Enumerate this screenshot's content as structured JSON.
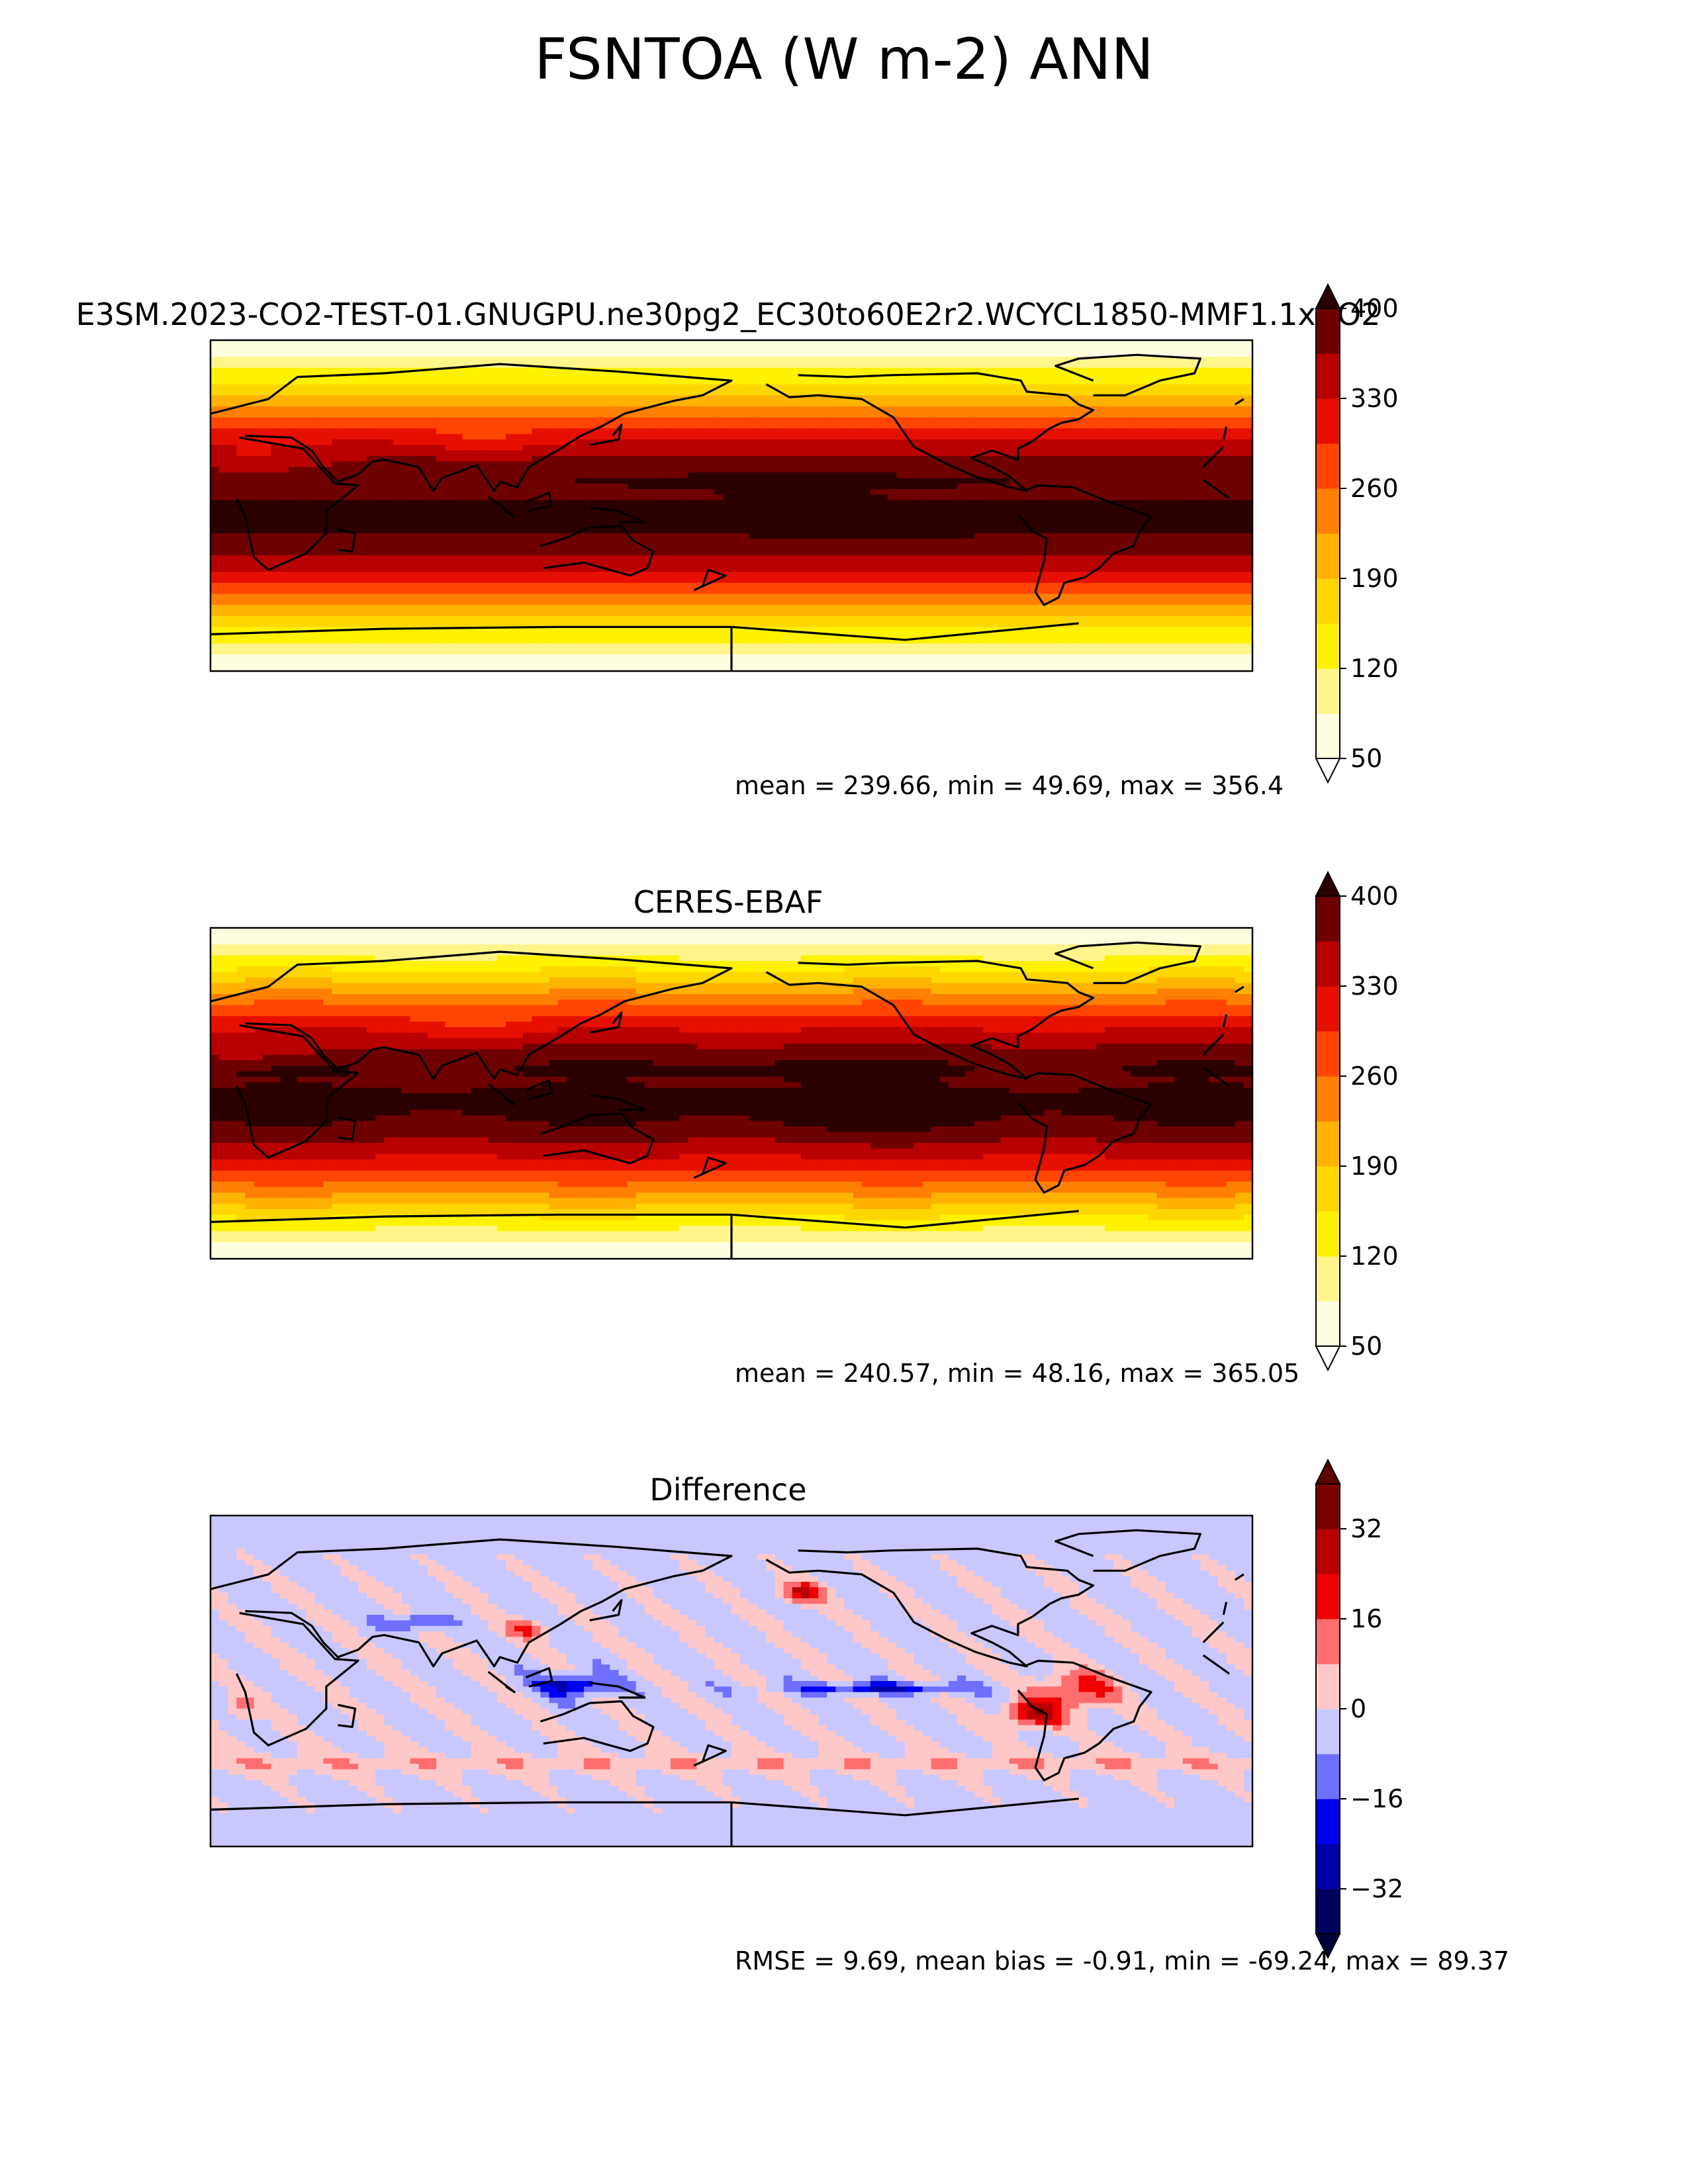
{
  "figure": {
    "title": "FSNTOA (W m-2) ANN"
  },
  "panels": [
    {
      "title": "E3SM.2023-CO2-TEST-01.GNUGPU.ne30pg2_EC30to60E2r2.WCYCL1850-MMF1.1xCO2",
      "stats": "mean = 239.66, min = 49.69, max = 356.4"
    },
    {
      "title": "CERES-EBAF",
      "stats": "mean = 240.57, min = 48.16, max = 365.05"
    },
    {
      "title": "Difference",
      "stats": "RMSE = 9.69, mean bias = -0.91, min = -69.24, max = 89.37"
    }
  ],
  "chart_data": [
    {
      "type": "heatmap",
      "name": "E3SM.2023-CO2-TEST-01.GNUGPU.ne30pg2_EC30to60E2r2.WCYCL1850-MMF1.1xCO2",
      "map": "global lat-lon, centered on 180",
      "colorbar": {
        "levels": [
          50,
          85,
          120,
          155,
          190,
          225,
          260,
          295,
          330,
          365,
          400
        ],
        "ticks": [
          400,
          330,
          260,
          190,
          120,
          50
        ],
        "colors": [
          "#fffde0",
          "#fff58a",
          "#fff200",
          "#ffd700",
          "#ffb300",
          "#ff8000",
          "#ff4500",
          "#e60f00",
          "#b80000",
          "#6e0000"
        ],
        "extend": "both",
        "under_color": "#ffffff",
        "over_color": "#2a0000"
      },
      "mean": 239.66,
      "min": 49.69,
      "max": 356.4
    },
    {
      "type": "heatmap",
      "name": "CERES-EBAF",
      "map": "global lat-lon, centered on 180",
      "colorbar": {
        "levels": [
          50,
          85,
          120,
          155,
          190,
          225,
          260,
          295,
          330,
          365,
          400
        ],
        "ticks": [
          400,
          330,
          260,
          190,
          120,
          50
        ],
        "colors": [
          "#fffde0",
          "#fff58a",
          "#fff200",
          "#ffd700",
          "#ffb300",
          "#ff8000",
          "#ff4500",
          "#e60f00",
          "#b80000",
          "#6e0000"
        ],
        "extend": "both",
        "under_color": "#ffffff",
        "over_color": "#2a0000"
      },
      "mean": 240.57,
      "min": 48.16,
      "max": 365.05
    },
    {
      "type": "heatmap",
      "name": "Difference",
      "map": "global lat-lon, centered on 180",
      "colorbar": {
        "levels": [
          -40,
          -32,
          -24,
          -16,
          -8,
          0,
          8,
          16,
          24,
          32,
          40
        ],
        "ticks": [
          32,
          16,
          0,
          -16,
          -32
        ],
        "tick_labels": [
          "32",
          "16",
          "0",
          "−16",
          "−32"
        ],
        "colors": [
          "#00005e",
          "#0000a8",
          "#0000f0",
          "#6e6eff",
          "#c8c8ff",
          "#ffc8c8",
          "#ff6e6e",
          "#f00000",
          "#b80000",
          "#7a0000"
        ],
        "extend": "both",
        "under_color": "#00003a",
        "over_color": "#5e0000"
      },
      "rmse": 9.69,
      "mean_bias": -0.91,
      "min": -69.24,
      "max": 89.37
    }
  ]
}
